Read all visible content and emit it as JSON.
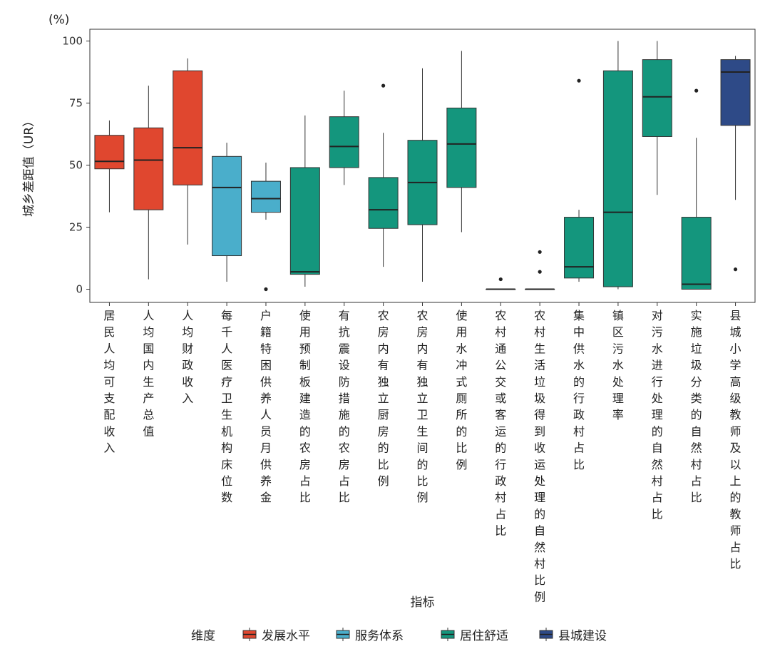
{
  "chart_data": {
    "type": "box",
    "unit_label": "(%)",
    "ylabel": "城乡差距值（UR）",
    "xlabel": "指标",
    "ylim": [
      -5,
      105
    ],
    "yticks": [
      0,
      25,
      50,
      75,
      100
    ],
    "grid": false,
    "legend_title": "维度",
    "legend_placement": "bottom",
    "groups": [
      {
        "name": "发展水平",
        "color": "#E0472F"
      },
      {
        "name": "服务体系",
        "color": "#4AAECB"
      },
      {
        "name": "居住舒适",
        "color": "#14967D"
      },
      {
        "name": "县城建设",
        "color": "#2E4A87"
      }
    ],
    "boxes": [
      {
        "label": "居民人均可支配收入",
        "group": 0,
        "whisker_low": 31,
        "q1": 48.5,
        "median": 51.5,
        "q3": 62,
        "whisker_high": 68,
        "outliers": []
      },
      {
        "label": "人均国内生产总值",
        "group": 0,
        "whisker_low": 4,
        "q1": 32,
        "median": 52,
        "q3": 65,
        "whisker_high": 82,
        "outliers": []
      },
      {
        "label": "人均财政收入",
        "group": 0,
        "whisker_low": 18,
        "q1": 42,
        "median": 57,
        "q3": 88,
        "whisker_high": 93,
        "outliers": []
      },
      {
        "label": "每千人医疗卫生机构床位数",
        "group": 1,
        "whisker_low": 3,
        "q1": 13.5,
        "median": 41,
        "q3": 53.5,
        "whisker_high": 59,
        "outliers": []
      },
      {
        "label": "户籍特困供养人员月供养金",
        "group": 1,
        "whisker_low": 28,
        "q1": 31,
        "median": 36.5,
        "q3": 43.5,
        "whisker_high": 51,
        "outliers": [
          0
        ]
      },
      {
        "label": "使用预制板建造的农房占比",
        "group": 2,
        "whisker_low": 1,
        "q1": 6,
        "median": 7,
        "q3": 49,
        "whisker_high": 70,
        "outliers": []
      },
      {
        "label": "有抗震设防措施的农房占比",
        "group": 2,
        "whisker_low": 42,
        "q1": 49,
        "median": 57.5,
        "q3": 69.5,
        "whisker_high": 80,
        "outliers": []
      },
      {
        "label": "农房内有独立厨房的比例",
        "group": 2,
        "whisker_low": 9,
        "q1": 24.5,
        "median": 32,
        "q3": 45,
        "whisker_high": 63,
        "outliers": [
          82
        ]
      },
      {
        "label": "农房内有独立卫生间的比例",
        "group": 2,
        "whisker_low": 3,
        "q1": 26,
        "median": 43,
        "q3": 60,
        "whisker_high": 89,
        "outliers": []
      },
      {
        "label": "使用水冲式厕所的比例",
        "group": 2,
        "whisker_low": 23,
        "q1": 41,
        "median": 58.5,
        "q3": 73,
        "whisker_high": 96,
        "outliers": []
      },
      {
        "label": "农村通公交或客运的行政村占比",
        "group": 2,
        "whisker_low": 0,
        "q1": 0,
        "median": 0,
        "q3": 0,
        "whisker_high": 0,
        "outliers": [
          4
        ]
      },
      {
        "label": "农村生活垃圾得到收运处理的自然村比例",
        "group": 2,
        "whisker_low": 0,
        "q1": 0,
        "median": 0,
        "q3": 0,
        "whisker_high": 0,
        "outliers": [
          7,
          15
        ]
      },
      {
        "label": "集中供水的行政村占比",
        "group": 2,
        "whisker_low": 3,
        "q1": 4.5,
        "median": 9,
        "q3": 29,
        "whisker_high": 32,
        "outliers": [
          84
        ]
      },
      {
        "label": "镇区污水处理率",
        "group": 2,
        "whisker_low": 0,
        "q1": 1,
        "median": 31,
        "q3": 88,
        "whisker_high": 100,
        "outliers": []
      },
      {
        "label": "对污水进行处理的自然村占比",
        "group": 2,
        "whisker_low": 38,
        "q1": 61.5,
        "median": 77.5,
        "q3": 92.5,
        "whisker_high": 100,
        "outliers": []
      },
      {
        "label": "实施垃圾分类的自然村占比",
        "group": 2,
        "whisker_low": 0,
        "q1": 0,
        "median": 2,
        "q3": 29,
        "whisker_high": 61,
        "outliers": [
          80
        ]
      },
      {
        "label": "县城小学高级教师及以上的教师占比",
        "group": 3,
        "whisker_low": 36,
        "q1": 66,
        "median": 87.5,
        "q3": 92.5,
        "whisker_high": 94,
        "outliers": [
          8
        ]
      }
    ]
  }
}
